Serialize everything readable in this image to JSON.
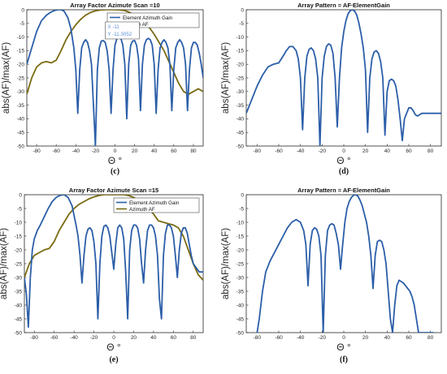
{
  "chart_data": [
    {
      "id": "c",
      "type": "line",
      "title": "Array Factor Azimute Scan =10",
      "xlabel": "Θ °",
      "ylabel": "abs(AF)/max(AF)",
      "xlim": [
        -90,
        90
      ],
      "ylim": [
        -50,
        0
      ],
      "xticks": [
        -80,
        -60,
        -40,
        -20,
        0,
        20,
        40,
        60,
        80
      ],
      "yticks": [
        0,
        -5,
        -10,
        -15,
        -20,
        -25,
        -30,
        -35,
        -40,
        -45,
        -50
      ],
      "grid": false,
      "legend": "top-right",
      "caption": "(c)",
      "datatip": {
        "x_text": "X -11",
        "y_text": "Y -11.3052"
      },
      "series": [
        {
          "name": "Element Azimuth Gain",
          "color": "#2b5ea8",
          "x": [
            -90,
            -85,
            -80,
            -75,
            -70,
            -66,
            -62,
            -58,
            -55,
            -52,
            -48,
            -45,
            -42,
            -40,
            -38,
            -36,
            -34,
            -32,
            -30,
            -28,
            -26,
            -24,
            -22,
            -20,
            -18,
            -16,
            -14,
            -12,
            -10,
            -8,
            -6,
            -4,
            -2,
            0,
            2,
            4,
            6,
            8,
            10,
            12,
            14,
            16,
            18,
            20,
            22,
            24,
            26,
            28,
            30,
            32,
            34,
            36,
            38,
            40,
            42,
            44,
            46,
            48,
            50,
            52,
            54,
            56,
            58,
            60,
            62,
            64,
            66,
            68,
            70,
            72,
            74,
            76,
            78,
            80,
            82,
            84,
            86,
            88,
            90
          ],
          "y": [
            -20,
            -14,
            -8,
            -4,
            -2,
            -1,
            -0.3,
            0,
            0,
            -0.5,
            -3,
            -7,
            -14,
            -22,
            -38,
            -22,
            -14,
            -12,
            -11,
            -12,
            -15,
            -20,
            -35,
            -50,
            -22,
            -14,
            -11.5,
            -11.3,
            -12,
            -15,
            -22,
            -38,
            -22,
            -13,
            -10.5,
            -10,
            -10.5,
            -13,
            -20,
            -40,
            -20,
            -13,
            -11.5,
            -11.3,
            -13,
            -18,
            -37,
            -20,
            -13,
            -11,
            -10.5,
            -11,
            -13,
            -20,
            -38,
            -22,
            -14,
            -12,
            -11,
            -12,
            -14,
            -20,
            -37,
            -22,
            -14,
            -12,
            -11,
            -12,
            -14,
            -20,
            -37,
            -22,
            -14,
            -12,
            -12,
            -13,
            -16,
            -20,
            -25
          ]
        },
        {
          "name": "Azimuth AF",
          "color": "#7a6a12",
          "x": [
            -90,
            -85,
            -80,
            -75,
            -70,
            -65,
            -60,
            -55,
            -50,
            -45,
            -40,
            -35,
            -30,
            -25,
            -20,
            -15,
            -10,
            -5,
            0,
            5,
            10,
            15,
            20,
            25,
            30,
            35,
            40,
            45,
            50,
            55,
            60,
            65,
            70,
            75,
            80,
            85,
            90
          ],
          "y": [
            -31,
            -25,
            -21,
            -19.5,
            -19,
            -19.5,
            -18.5,
            -15,
            -11,
            -8,
            -5.5,
            -3.5,
            -2,
            -1,
            -0.4,
            -0.1,
            0,
            0,
            0,
            -0.1,
            -0.3,
            -1,
            -2,
            -3,
            -4.5,
            -6.5,
            -9,
            -12,
            -15,
            -19,
            -23,
            -27,
            -30,
            -31,
            -30,
            -29,
            -30
          ]
        }
      ]
    },
    {
      "id": "d",
      "type": "line",
      "title": "Array Pattern = AF∙ElementGain",
      "xlabel": "Θ °",
      "ylabel": "abs(AF)/max(AF)",
      "xlim": [
        -90,
        90
      ],
      "ylim": [
        -50,
        0
      ],
      "xticks": [
        -80,
        -60,
        -40,
        -20,
        0,
        20,
        40,
        60,
        80
      ],
      "yticks": [
        0,
        -5,
        -10,
        -15,
        -20,
        -25,
        -30,
        -35,
        -40,
        -45,
        -50
      ],
      "grid": false,
      "caption": "(d)",
      "series": [
        {
          "color": "#2b5ea8",
          "x": [
            -90,
            -85,
            -80,
            -75,
            -70,
            -65,
            -60,
            -56,
            -53,
            -50,
            -47,
            -44,
            -42,
            -40,
            -38,
            -36,
            -34,
            -32,
            -30,
            -28,
            -26,
            -24,
            -22,
            -20,
            -18,
            -16,
            -14,
            -12,
            -10,
            -8,
            -6,
            -4,
            -2,
            0,
            2,
            4,
            6,
            8,
            10,
            12,
            14,
            16,
            18,
            20,
            22,
            24,
            26,
            28,
            30,
            32,
            34,
            36,
            38,
            40,
            42,
            44,
            46,
            48,
            50,
            52,
            54,
            56,
            58,
            60,
            62,
            64,
            66,
            68,
            70,
            72,
            74,
            76,
            78,
            80,
            82,
            84,
            86,
            88,
            90
          ],
          "y": [
            -38,
            -33,
            -28,
            -24,
            -21,
            -20,
            -19.5,
            -17,
            -15,
            -13.5,
            -13.5,
            -15,
            -18,
            -25,
            -44,
            -25,
            -17,
            -14.5,
            -14,
            -15,
            -18,
            -25,
            -50,
            -25,
            -17,
            -13.5,
            -12.5,
            -13,
            -16,
            -25,
            -43,
            -25,
            -14,
            -8,
            -4,
            -1.5,
            -0.3,
            0,
            -0.5,
            -2,
            -5,
            -9,
            -14,
            -22,
            -45,
            -25,
            -18,
            -15.5,
            -15,
            -16,
            -19,
            -25,
            -46,
            -30,
            -26,
            -25.5,
            -26,
            -28,
            -33,
            -40,
            -48,
            -40,
            -38,
            -36,
            -36,
            -37,
            -38.5,
            -39,
            -38.5,
            -38,
            -38,
            -38,
            -38,
            -38,
            -38,
            -38,
            -38,
            -38,
            -38
          ]
        }
      ]
    },
    {
      "id": "e",
      "type": "line",
      "title": "Array Factor Azimute Scan =15",
      "xlabel": "Θ °",
      "ylabel": "abs(AF)/max(AF)",
      "xlim": [
        -90,
        90
      ],
      "ylim": [
        -50,
        0
      ],
      "xticks": [
        -80,
        -60,
        -40,
        -20,
        0,
        20,
        40,
        60,
        80
      ],
      "yticks": [
        0,
        -5,
        -10,
        -15,
        -20,
        -25,
        -30,
        -35,
        -40,
        -45,
        -50
      ],
      "grid": false,
      "legend": "top-right",
      "caption": "(e)",
      "series": [
        {
          "name": "Element Azimuth Gain",
          "color": "#2b5ea8",
          "x": [
            -90,
            -88,
            -86,
            -84,
            -82,
            -80,
            -77,
            -74,
            -70,
            -66,
            -62,
            -58,
            -54,
            -50,
            -46,
            -42,
            -38,
            -36,
            -34,
            -32,
            -30,
            -28,
            -26,
            -24,
            -22,
            -20,
            -18,
            -16,
            -14,
            -12,
            -10,
            -8,
            -6,
            -4,
            -2,
            0,
            2,
            4,
            6,
            8,
            10,
            12,
            14,
            16,
            18,
            20,
            22,
            24,
            26,
            28,
            30,
            32,
            34,
            36,
            38,
            40,
            42,
            44,
            46,
            48,
            50,
            52,
            54,
            56,
            58,
            60,
            62,
            64,
            66,
            68,
            70,
            72,
            74,
            76,
            78,
            80,
            82,
            84,
            86,
            88,
            90
          ],
          "y": [
            -30,
            -36,
            -48,
            -30,
            -20,
            -16,
            -13,
            -11,
            -8,
            -5,
            -2.5,
            -1,
            -0.2,
            0,
            -1,
            -4,
            -11,
            -15,
            -22,
            -32,
            -22,
            -15,
            -12.5,
            -12,
            -13,
            -17,
            -25,
            -45,
            -25,
            -15,
            -11.5,
            -11,
            -12,
            -15,
            -21,
            -27,
            -18,
            -12,
            -11,
            -12,
            -16,
            -28,
            -45,
            -20,
            -13,
            -11,
            -11,
            -12,
            -16,
            -25,
            -32,
            -20,
            -13,
            -11,
            -11,
            -12,
            -15,
            -22,
            -38,
            -45,
            -22,
            -14,
            -11,
            -11,
            -12,
            -15,
            -22,
            -30,
            -20,
            -14,
            -12,
            -12,
            -14,
            -18,
            -22,
            -25,
            -26,
            -27,
            -28,
            -28,
            -28
          ]
        },
        {
          "name": "Azimuth AF",
          "color": "#7a6a12",
          "x": [
            -90,
            -85,
            -80,
            -75,
            -70,
            -65,
            -60,
            -55,
            -50,
            -45,
            -40,
            -35,
            -30,
            -25,
            -20,
            -15,
            -10,
            -5,
            0,
            5,
            10,
            15,
            20,
            25,
            30,
            35,
            40,
            45,
            50,
            55,
            60,
            65,
            70,
            75,
            80,
            85,
            90
          ],
          "y": [
            -30,
            -25,
            -22,
            -21,
            -20,
            -19.5,
            -17,
            -13,
            -10,
            -7,
            -5,
            -3.5,
            -2.5,
            -1.5,
            -0.8,
            -0.3,
            0,
            0,
            0,
            0,
            0,
            -0.3,
            -1,
            -2,
            -3.5,
            -5,
            -7,
            -9.5,
            -10,
            -10.5,
            -11,
            -12,
            -15,
            -20,
            -25,
            -29,
            -31
          ]
        }
      ]
    },
    {
      "id": "f",
      "type": "line",
      "title": "Array Pattern = AF∙ElementGain",
      "xlabel": "Θ °",
      "ylabel": "abs(AF)/max(AF)",
      "xlim": [
        -90,
        90
      ],
      "ylim": [
        -50,
        0
      ],
      "xticks": [
        -80,
        -60,
        -40,
        -20,
        0,
        20,
        40,
        60,
        80
      ],
      "yticks": [
        0,
        -5,
        -10,
        -15,
        -20,
        -25,
        -30,
        -35,
        -40,
        -45,
        -50
      ],
      "grid": false,
      "caption": "(f)",
      "series": [
        {
          "color": "#2b5ea8",
          "x": [
            -80,
            -78,
            -75,
            -72,
            -68,
            -64,
            -60,
            -56,
            -52,
            -48,
            -44,
            -40,
            -37,
            -35,
            -33,
            -31,
            -29,
            -27,
            -25,
            -23,
            -21,
            -19,
            -17,
            -15,
            -13,
            -11,
            -9,
            -7,
            -5,
            -3,
            -1,
            1,
            3,
            5,
            7,
            9,
            11,
            13,
            15,
            17,
            19,
            21,
            23,
            25,
            27,
            29,
            31,
            33,
            35,
            37,
            39,
            41,
            43,
            45,
            47,
            49,
            51,
            53,
            55,
            57,
            59,
            61,
            63,
            65,
            67,
            69,
            71,
            73,
            75,
            77,
            79,
            81,
            83
          ],
          "y": [
            -50,
            -45,
            -35,
            -28,
            -24,
            -21,
            -18,
            -15,
            -12,
            -10,
            -9,
            -10,
            -13,
            -18,
            -33,
            -18,
            -13,
            -12,
            -12.5,
            -15,
            -22,
            -50,
            -22,
            -13,
            -11,
            -10.5,
            -11,
            -14,
            -18,
            -27,
            -18,
            -10,
            -5,
            -2.5,
            -1,
            -0.2,
            0,
            -0.5,
            -2,
            -4,
            -7,
            -10,
            -15,
            -22,
            -34,
            -22,
            -17,
            -16.5,
            -17,
            -20,
            -25,
            -35,
            -45,
            -50,
            -40,
            -33,
            -31,
            -31.5,
            -32,
            -33,
            -34,
            -35,
            -37,
            -40,
            -45,
            -50,
            -50,
            -50,
            -50,
            -50,
            -50,
            -50,
            -50
          ]
        }
      ]
    }
  ]
}
